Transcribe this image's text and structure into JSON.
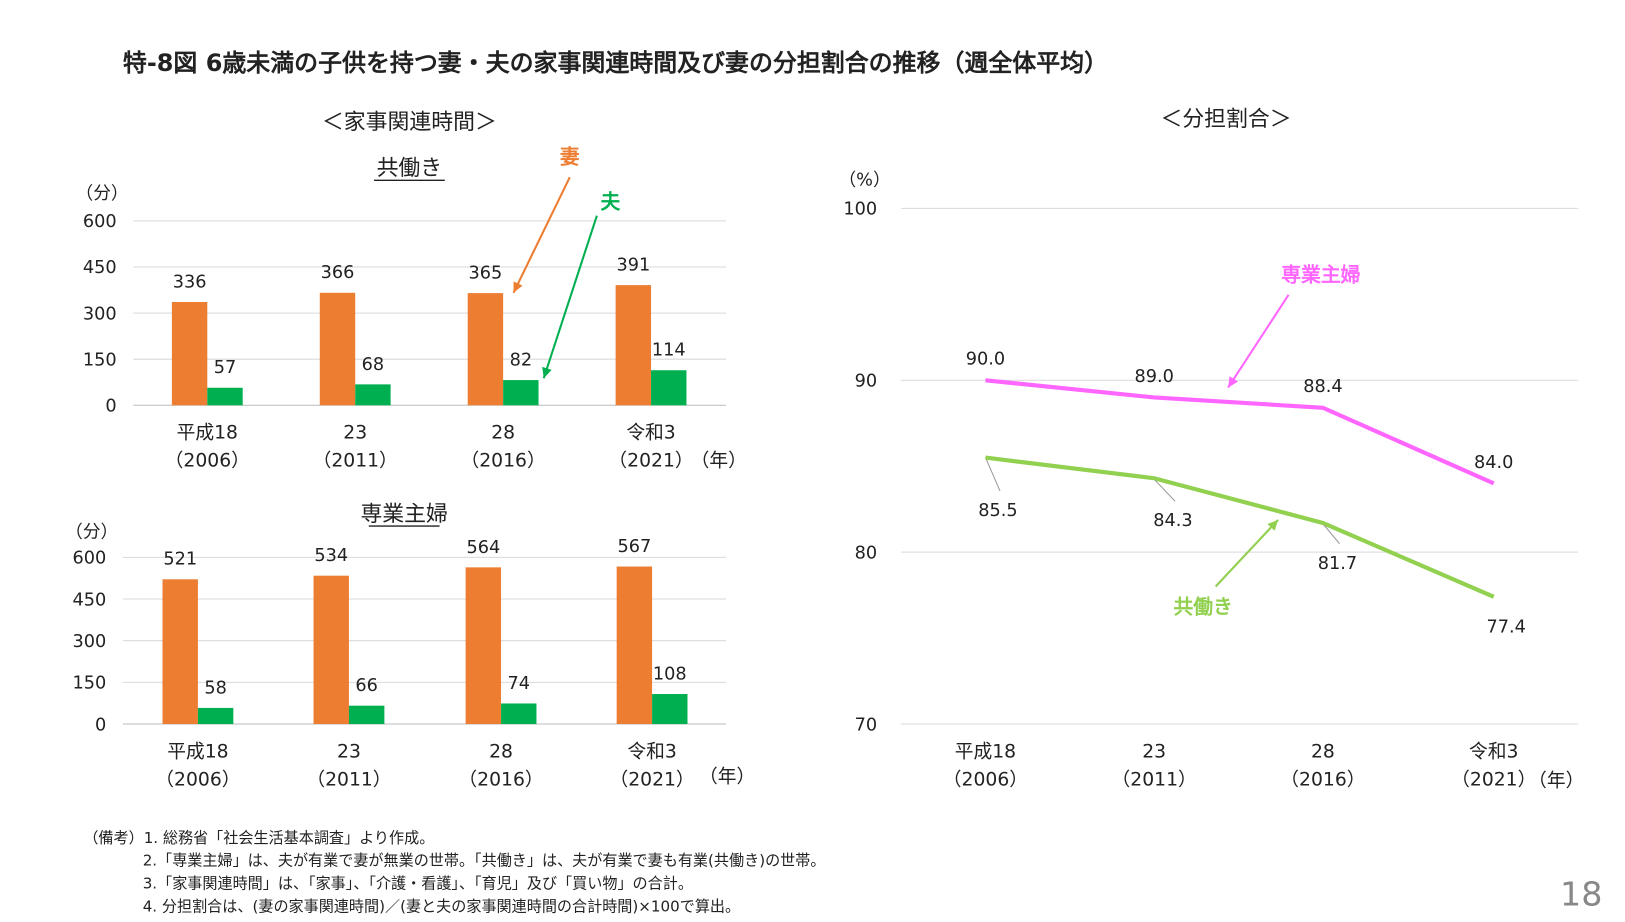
{
  "title": "特-8図 6歳未満の子供を持つ妻・夫の家事関連時間及び妻の分担割合の推移（週全体平均）",
  "colors": {
    "wife": "#ED7D31",
    "husband": "#00B050",
    "fulltime_housewife": "#FF66FF",
    "dual_income": "#92D050"
  },
  "left_header": "＜家事関連時間＞",
  "right_header": "＜分担割合＞",
  "chart_data": [
    {
      "type": "bar",
      "title": "共働き",
      "ylabel": "（分）",
      "ylim": [
        0,
        600
      ],
      "yticks": [
        "0",
        "150",
        "300",
        "450",
        "600"
      ],
      "categories": [
        [
          "平成18",
          "（2006）"
        ],
        [
          "23",
          "（2011）"
        ],
        [
          "28",
          "（2016）"
        ],
        [
          "令和3",
          "（2021）"
        ]
      ],
      "xunit": "（年）",
      "series": [
        {
          "name": "妻",
          "values": [
            336,
            366,
            365,
            391
          ]
        },
        {
          "name": "夫",
          "values": [
            57,
            68,
            82,
            114
          ]
        }
      ]
    },
    {
      "type": "bar",
      "title": "専業主婦",
      "ylabel": "（分）",
      "ylim": [
        0,
        600
      ],
      "yticks": [
        "0",
        "150",
        "300",
        "450",
        "600"
      ],
      "categories": [
        [
          "平成18",
          "（2006）"
        ],
        [
          "23",
          "（2011）"
        ],
        [
          "28",
          "（2016）"
        ],
        [
          "令和3",
          "（2021）"
        ]
      ],
      "xunit": "（年）",
      "series": [
        {
          "name": "妻",
          "values": [
            521,
            534,
            564,
            567
          ]
        },
        {
          "name": "夫",
          "values": [
            58,
            66,
            74,
            108
          ]
        }
      ]
    },
    {
      "type": "line",
      "ylabel": "（%）",
      "ylim": [
        70,
        100
      ],
      "yticks": [
        "70",
        "80",
        "90",
        "100"
      ],
      "categories": [
        [
          "平成18",
          "（2006）"
        ],
        [
          "23",
          "（2011）"
        ],
        [
          "28",
          "（2016）"
        ],
        [
          "令和3",
          "（2021）"
        ]
      ],
      "xunit": "（年）",
      "series": [
        {
          "name": "専業主婦",
          "values": [
            90.0,
            89.0,
            88.4,
            84.0
          ],
          "labels": [
            "90.0",
            "89.0",
            "88.4",
            "84.0"
          ]
        },
        {
          "name": "共働き",
          "values": [
            85.5,
            84.3,
            81.7,
            77.4
          ],
          "labels": [
            "85.5",
            "84.3",
            "81.7",
            "77.4"
          ]
        }
      ]
    }
  ],
  "notes": [
    "（備考）1. 総務省「社会生活基本調査」より作成。",
    "2.「専業主婦」は、夫が有業で妻が無業の世帯。「共働き」は、夫が有業で妻も有業(共働き)の世帯。",
    "3.「家事関連時間」は、「家事」、「介護・看護」、「育児」及び「買い物」の合計。",
    "4. 分担割合は、(妻の家事関連時間)／(妻と夫の家事関連時間の合計時間)×100で算出。"
  ],
  "page_number": "18"
}
